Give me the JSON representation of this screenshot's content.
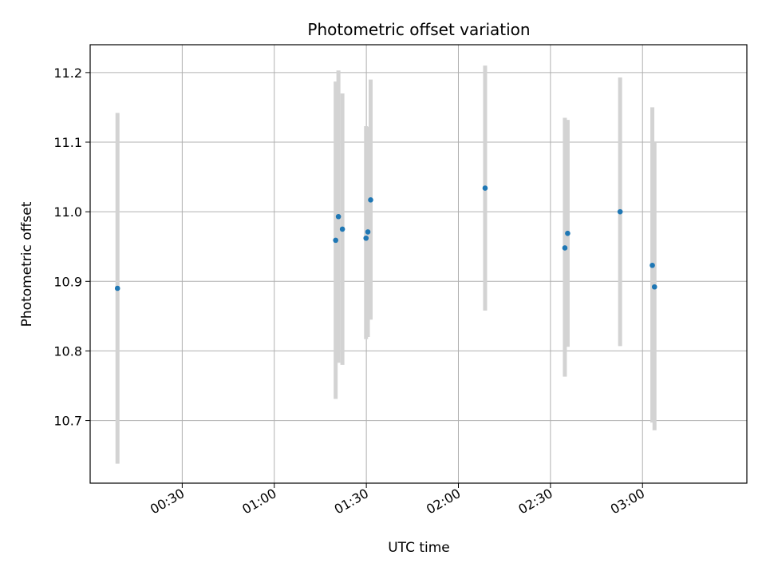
{
  "chart_data": {
    "type": "scatter",
    "title": "Photometric offset variation",
    "xlabel": "UTC time",
    "ylabel": "Photometric offset",
    "x_unit": "minutes",
    "xlim": [
      0.0,
      214.0
    ],
    "ylim": [
      10.61,
      11.24
    ],
    "x_ticks": [
      {
        "value": 30,
        "label": "00:30"
      },
      {
        "value": 60,
        "label": "01:00"
      },
      {
        "value": 90,
        "label": "01:30"
      },
      {
        "value": 120,
        "label": "02:00"
      },
      {
        "value": 150,
        "label": "02:30"
      },
      {
        "value": 180,
        "label": "03:00"
      }
    ],
    "y_ticks": [
      {
        "value": 10.7,
        "label": "10.7"
      },
      {
        "value": 10.8,
        "label": "10.8"
      },
      {
        "value": 10.9,
        "label": "10.9"
      },
      {
        "value": 11.0,
        "label": "11.0"
      },
      {
        "value": 11.1,
        "label": "11.1"
      },
      {
        "value": 11.2,
        "label": "11.2"
      }
    ],
    "grid": true,
    "series": [
      {
        "color": "#1f77b4",
        "error_color": "#d3d3d3",
        "points": [
          {
            "x": 8.9,
            "y": 10.89,
            "y_low": 10.638,
            "y_high": 11.142
          },
          {
            "x": 80.0,
            "y": 10.959,
            "y_low": 10.731,
            "y_high": 11.187
          },
          {
            "x": 80.9,
            "y": 10.993,
            "y_low": 10.783,
            "y_high": 11.203
          },
          {
            "x": 82.2,
            "y": 10.975,
            "y_low": 10.78,
            "y_high": 11.17
          },
          {
            "x": 89.9,
            "y": 10.962,
            "y_low": 10.817,
            "y_high": 11.123
          },
          {
            "x": 90.5,
            "y": 10.971,
            "y_low": 10.82,
            "y_high": 11.122
          },
          {
            "x": 91.4,
            "y": 11.017,
            "y_low": 10.845,
            "y_high": 11.19
          },
          {
            "x": 128.7,
            "y": 11.034,
            "y_low": 10.858,
            "y_high": 11.21
          },
          {
            "x": 154.7,
            "y": 10.948,
            "y_low": 10.763,
            "y_high": 11.135
          },
          {
            "x": 155.6,
            "y": 10.969,
            "y_low": 10.806,
            "y_high": 11.132
          },
          {
            "x": 172.7,
            "y": 11.0,
            "y_low": 10.807,
            "y_high": 11.193
          },
          {
            "x": 183.2,
            "y": 10.923,
            "y_low": 10.697,
            "y_high": 11.15
          },
          {
            "x": 183.9,
            "y": 10.892,
            "y_low": 10.686,
            "y_high": 11.099
          }
        ]
      }
    ]
  }
}
